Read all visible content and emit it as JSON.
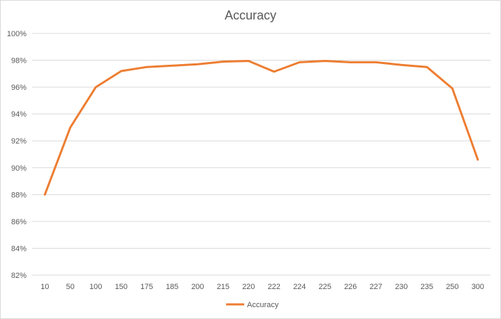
{
  "chart_data": {
    "type": "line",
    "title": "Accuracy",
    "xlabel": "",
    "ylabel": "",
    "categories": [
      "10",
      "50",
      "100",
      "150",
      "175",
      "185",
      "200",
      "215",
      "220",
      "222",
      "224",
      "225",
      "226",
      "227",
      "230",
      "235",
      "250",
      "300"
    ],
    "series": [
      {
        "name": "Accuracy",
        "color": "#ED7D31",
        "values": [
          88.0,
          93.0,
          96.0,
          97.2,
          97.5,
          97.6,
          97.7,
          97.9,
          97.95,
          97.15,
          97.85,
          97.95,
          97.85,
          97.85,
          97.65,
          97.5,
          95.9,
          90.6
        ]
      }
    ],
    "ylim": [
      82,
      100
    ],
    "yticks": [
      82,
      84,
      86,
      88,
      90,
      92,
      94,
      96,
      98,
      100
    ],
    "y_tick_labels": [
      "82%",
      "84%",
      "86%",
      "88%",
      "90%",
      "92%",
      "94%",
      "96%",
      "98%",
      "100%"
    ],
    "grid": true,
    "legend_position": "bottom",
    "colors": {
      "gridline": "#d9d9d9",
      "text": "#595959",
      "border": "#d9d9d9"
    }
  }
}
